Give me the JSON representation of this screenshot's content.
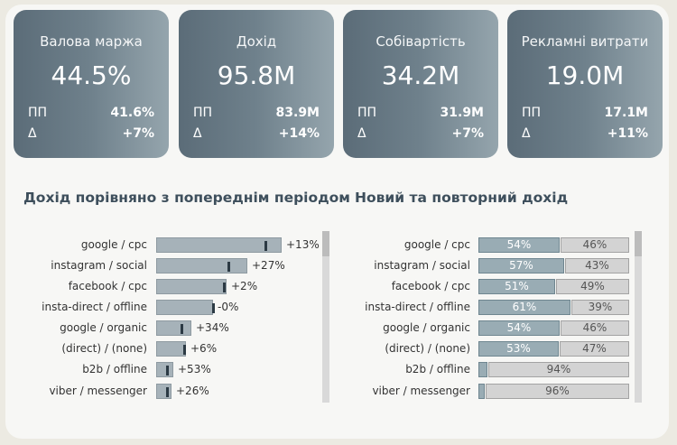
{
  "kpis": [
    {
      "title": "Валова маржа",
      "value": "44.5%",
      "pp_label": "ПП",
      "pp_value": "41.6%",
      "delta_label": "Δ",
      "delta_value": "+7%"
    },
    {
      "title": "Дохід",
      "value": "95.8M",
      "pp_label": "ПП",
      "pp_value": "83.9M",
      "delta_label": "Δ",
      "delta_value": "+14%"
    },
    {
      "title": "Собівартість",
      "value": "34.2M",
      "pp_label": "ПП",
      "pp_value": "31.9M",
      "delta_label": "Δ",
      "delta_value": "+7%"
    },
    {
      "title": "Рекламні витрати",
      "value": "19.0M",
      "pp_label": "ПП",
      "pp_value": "17.1M",
      "delta_label": "Δ",
      "delta_value": "+11%"
    }
  ],
  "chart_data": [
    {
      "type": "bar",
      "title": "Дохід порівняно з попереднім періодом",
      "categories": [
        "google / cpc",
        "instagram / social",
        "facebook / cpc",
        "insta-direct / offline",
        "google / organic",
        "(direct) / (none)",
        "b2b / offline",
        "viber / messenger"
      ],
      "series": [
        {
          "values": [
            100,
            73,
            56,
            45,
            28,
            24,
            14,
            12
          ]
        },
        {
          "values": [
            88,
            58,
            55,
            46,
            21,
            23,
            9,
            9
          ]
        }
      ],
      "change_labels": [
        "+13%",
        "+27%",
        "+2%",
        "-0%",
        "+34%",
        "+6%",
        "+53%",
        "+26%"
      ]
    },
    {
      "type": "bar",
      "title": "Новий та повторний дохід",
      "categories": [
        "google / cpc",
        "instagram / social",
        "facebook / cpc",
        "insta-direct / offline",
        "google / organic",
        "(direct) / (none)",
        "b2b / offline",
        "viber / messenger"
      ],
      "series": [
        {
          "values": [
            54,
            57,
            51,
            61,
            54,
            53,
            6,
            4
          ]
        },
        {
          "values": [
            46,
            43,
            49,
            39,
            46,
            47,
            94,
            96
          ]
        }
      ],
      "labels_new": [
        "54%",
        "57%",
        "51%",
        "61%",
        "54%",
        "53%",
        "",
        ""
      ],
      "labels_rep": [
        "46%",
        "43%",
        "49%",
        "39%",
        "46%",
        "47%",
        "94%",
        "96%"
      ]
    }
  ]
}
